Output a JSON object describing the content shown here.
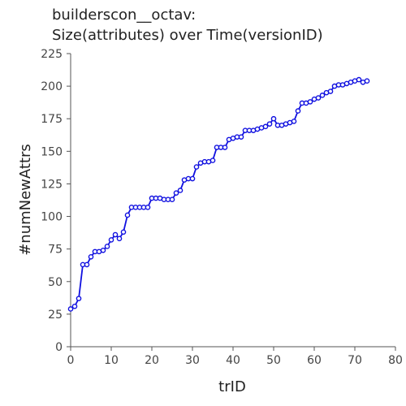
{
  "chart_data": {
    "type": "line",
    "title_line1": "builderscon__octav:",
    "title_line2": "Size(attributes) over Time(versionID)",
    "xlabel": "trID",
    "ylabel": "#numNewAttrs",
    "xlim": [
      0,
      80
    ],
    "ylim": [
      0,
      225
    ],
    "xticks": [
      0,
      10,
      20,
      30,
      40,
      50,
      60,
      70,
      80
    ],
    "yticks": [
      0,
      25,
      50,
      75,
      100,
      125,
      150,
      175,
      200,
      225
    ],
    "grid": false,
    "color": "#1010e0",
    "series": [
      {
        "x": [
          0,
          1,
          2,
          3,
          4,
          5,
          6,
          7,
          8,
          9,
          10,
          11,
          12,
          13,
          14,
          15,
          16,
          17,
          18,
          19,
          20,
          21,
          22,
          23,
          24,
          25,
          26,
          27,
          28,
          29,
          30,
          31,
          32,
          33,
          34,
          35,
          36,
          37,
          38,
          39,
          40,
          41,
          42,
          43,
          44,
          45,
          46,
          47,
          48,
          49,
          50,
          51,
          52,
          53,
          54,
          55,
          56,
          57,
          58,
          59,
          60,
          61,
          62,
          63,
          64,
          65,
          66,
          67,
          68,
          69,
          70,
          71,
          72,
          73
        ],
        "y": [
          29,
          31,
          37,
          63,
          63,
          69,
          73,
          73,
          74,
          77,
          82,
          86,
          83,
          88,
          101,
          107,
          107,
          107,
          107,
          107,
          114,
          114,
          114,
          113,
          113,
          113,
          118,
          120,
          128,
          129,
          129,
          138,
          141,
          142,
          142,
          143,
          153,
          153,
          153,
          159,
          160,
          161,
          161,
          166,
          166,
          166,
          167,
          168,
          169,
          171,
          175,
          170,
          170,
          171,
          172,
          173,
          181,
          187,
          187,
          188,
          190,
          191,
          193,
          195,
          196,
          200,
          201,
          201,
          202,
          203,
          204,
          205,
          203,
          204
        ]
      }
    ]
  }
}
